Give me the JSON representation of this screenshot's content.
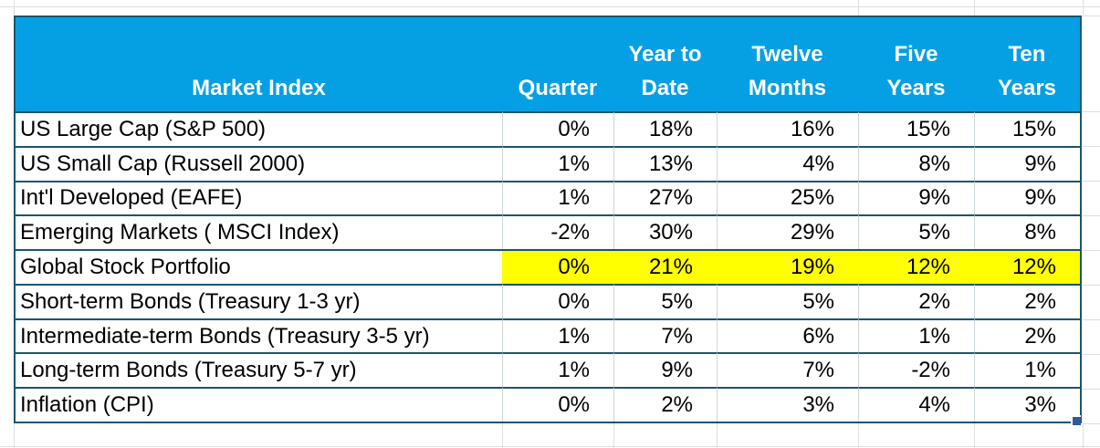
{
  "colors": {
    "header_bg": "#05A0E4",
    "header_text": "#FFFFFF",
    "row_border": "#1A5570",
    "column_gridline": "#CCD6DB",
    "sheet_gridline": "#DBDFE3",
    "highlight": "#FFFF00",
    "fill_handle": "#2E5B9E",
    "cell_text": "#000000",
    "background": "#FFFFFF"
  },
  "table": {
    "header": {
      "columns": [
        {
          "id": "market-index",
          "lines": [
            "Market Index"
          ]
        },
        {
          "id": "quarter",
          "lines": [
            "Quarter"
          ]
        },
        {
          "id": "year-to-date",
          "lines": [
            "Year to",
            "Date"
          ]
        },
        {
          "id": "twelve-months",
          "lines": [
            "Twelve",
            "Months"
          ]
        },
        {
          "id": "five-years",
          "lines": [
            "Five",
            "Years"
          ]
        },
        {
          "id": "ten-years",
          "lines": [
            "Ten",
            "Years"
          ]
        }
      ]
    },
    "rows": [
      {
        "label": "US Large Cap (S&P 500)",
        "values": [
          "0%",
          "18%",
          "16%",
          "15%",
          "15%"
        ],
        "highlighted": false
      },
      {
        "label": "US Small Cap (Russell 2000)",
        "values": [
          "1%",
          "13%",
          "4%",
          "8%",
          "9%"
        ],
        "highlighted": false
      },
      {
        "label": "Int'l Developed (EAFE)",
        "values": [
          "1%",
          "27%",
          "25%",
          "9%",
          "9%"
        ],
        "highlighted": false
      },
      {
        "label": "Emerging Markets ( MSCI Index)",
        "values": [
          "-2%",
          "30%",
          "29%",
          "5%",
          "8%"
        ],
        "highlighted": false
      },
      {
        "label": "Global Stock Portfolio",
        "values": [
          "0%",
          "21%",
          "19%",
          "12%",
          "12%"
        ],
        "highlighted": true
      },
      {
        "label": "Short-term Bonds (Treasury 1-3 yr)",
        "values": [
          "0%",
          "5%",
          "5%",
          "2%",
          "2%"
        ],
        "highlighted": false
      },
      {
        "label": "Intermediate-term Bonds (Treasury 3-5 yr)",
        "values": [
          "1%",
          "7%",
          "6%",
          "1%",
          "2%"
        ],
        "highlighted": false
      },
      {
        "label": "Long-term Bonds (Treasury 5-7 yr)",
        "values": [
          "1%",
          "9%",
          "7%",
          "-2%",
          "1%"
        ],
        "highlighted": false
      },
      {
        "label": "Inflation (CPI)",
        "values": [
          "0%",
          "2%",
          "3%",
          "4%",
          "3%"
        ],
        "highlighted": false
      }
    ]
  }
}
